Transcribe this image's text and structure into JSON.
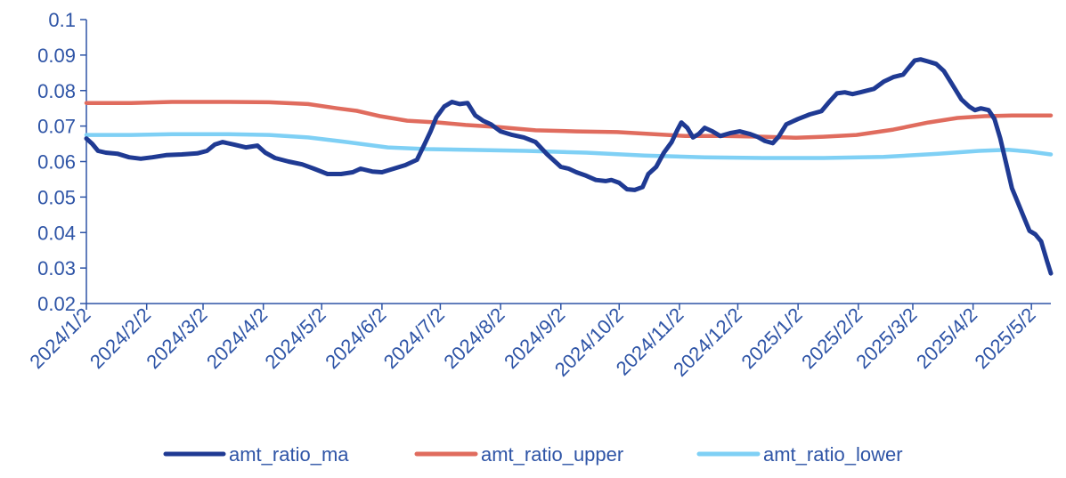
{
  "chart_data": {
    "type": "line",
    "title": "",
    "xlabel": "",
    "ylabel": "",
    "ylim": [
      0.02,
      0.1
    ],
    "y_ticks": [
      "0.02",
      "0.03",
      "0.04",
      "0.05",
      "0.06",
      "0.07",
      "0.08",
      "0.09",
      "0.1"
    ],
    "x_range": [
      "2024-01-02",
      "2025-05-12"
    ],
    "x_ticks": [
      "2024/1/2",
      "2024/2/2",
      "2024/3/2",
      "2024/4/2",
      "2024/5/2",
      "2024/6/2",
      "2024/7/2",
      "2024/8/2",
      "2024/9/2",
      "2024/10/2",
      "2024/11/2",
      "2024/12/2",
      "2025/1/2",
      "2025/2/2",
      "2025/3/2",
      "2025/4/2",
      "2025/5/2"
    ],
    "grid": false,
    "legend": "bottom",
    "series": [
      {
        "name": "amt_ratio_ma",
        "color": "#1F3A93",
        "points": [
          [
            "2024-01-02",
            0.0665
          ],
          [
            "2024-01-05",
            0.065
          ],
          [
            "2024-01-08",
            0.063
          ],
          [
            "2024-01-12",
            0.0625
          ],
          [
            "2024-01-18",
            0.0622
          ],
          [
            "2024-01-24",
            0.0612
          ],
          [
            "2024-01-30",
            0.0608
          ],
          [
            "2024-02-05",
            0.0612
          ],
          [
            "2024-02-12",
            0.0618
          ],
          [
            "2024-02-20",
            0.062
          ],
          [
            "2024-02-28",
            0.0623
          ],
          [
            "2024-03-04",
            0.063
          ],
          [
            "2024-03-08",
            0.0648
          ],
          [
            "2024-03-12",
            0.0655
          ],
          [
            "2024-03-18",
            0.0648
          ],
          [
            "2024-03-24",
            0.064
          ],
          [
            "2024-03-30",
            0.0645
          ],
          [
            "2024-04-03",
            0.0625
          ],
          [
            "2024-04-08",
            0.061
          ],
          [
            "2024-04-15",
            0.06
          ],
          [
            "2024-04-22",
            0.0592
          ],
          [
            "2024-04-28",
            0.058
          ],
          [
            "2024-05-05",
            0.0565
          ],
          [
            "2024-05-12",
            0.0565
          ],
          [
            "2024-05-18",
            0.057
          ],
          [
            "2024-05-22",
            0.058
          ],
          [
            "2024-05-28",
            0.0572
          ],
          [
            "2024-06-02",
            0.057
          ],
          [
            "2024-06-08",
            0.058
          ],
          [
            "2024-06-14",
            0.059
          ],
          [
            "2024-06-20",
            0.0605
          ],
          [
            "2024-06-24",
            0.065
          ],
          [
            "2024-06-27",
            0.0685
          ],
          [
            "2024-06-30",
            0.0725
          ],
          [
            "2024-07-04",
            0.0755
          ],
          [
            "2024-07-08",
            0.0768
          ],
          [
            "2024-07-12",
            0.0762
          ],
          [
            "2024-07-16",
            0.0765
          ],
          [
            "2024-07-20",
            0.073
          ],
          [
            "2024-07-24",
            0.0715
          ],
          [
            "2024-07-28",
            0.0705
          ],
          [
            "2024-08-02",
            0.0685
          ],
          [
            "2024-08-08",
            0.0675
          ],
          [
            "2024-08-14",
            0.0668
          ],
          [
            "2024-08-20",
            0.0655
          ],
          [
            "2024-08-26",
            0.062
          ],
          [
            "2024-09-02",
            0.0585
          ],
          [
            "2024-09-06",
            0.058
          ],
          [
            "2024-09-10",
            0.057
          ],
          [
            "2024-09-15",
            0.056
          ],
          [
            "2024-09-20",
            0.0548
          ],
          [
            "2024-09-25",
            0.0545
          ],
          [
            "2024-09-28",
            0.0548
          ],
          [
            "2024-10-02",
            0.054
          ],
          [
            "2024-10-06",
            0.0522
          ],
          [
            "2024-10-10",
            0.052
          ],
          [
            "2024-10-14",
            0.0528
          ],
          [
            "2024-10-17",
            0.0565
          ],
          [
            "2024-10-21",
            0.0585
          ],
          [
            "2024-10-25",
            0.0625
          ],
          [
            "2024-10-29",
            0.0655
          ],
          [
            "2024-11-01",
            0.069
          ],
          [
            "2024-11-03",
            0.071
          ],
          [
            "2024-11-06",
            0.0695
          ],
          [
            "2024-11-09",
            0.0668
          ],
          [
            "2024-11-12",
            0.0678
          ],
          [
            "2024-11-15",
            0.0695
          ],
          [
            "2024-11-19",
            0.0685
          ],
          [
            "2024-11-23",
            0.0672
          ],
          [
            "2024-11-28",
            0.068
          ],
          [
            "2024-12-03",
            0.0685
          ],
          [
            "2024-12-08",
            0.0678
          ],
          [
            "2024-12-12",
            0.067
          ],
          [
            "2024-12-16",
            0.0658
          ],
          [
            "2024-12-20",
            0.0652
          ],
          [
            "2024-12-23",
            0.067
          ],
          [
            "2024-12-27",
            0.0705
          ],
          [
            "2025-01-02",
            0.072
          ],
          [
            "2025-01-08",
            0.0733
          ],
          [
            "2025-01-14",
            0.0742
          ],
          [
            "2025-01-18",
            0.0768
          ],
          [
            "2025-01-22",
            0.0792
          ],
          [
            "2025-01-26",
            0.0795
          ],
          [
            "2025-01-30",
            0.079
          ],
          [
            "2025-02-03",
            0.0795
          ],
          [
            "2025-02-10",
            0.0805
          ],
          [
            "2025-02-15",
            0.0825
          ],
          [
            "2025-02-20",
            0.0838
          ],
          [
            "2025-02-25",
            0.0845
          ],
          [
            "2025-02-28",
            0.0865
          ],
          [
            "2025-03-03",
            0.0885
          ],
          [
            "2025-03-06",
            0.0888
          ],
          [
            "2025-03-10",
            0.0882
          ],
          [
            "2025-03-14",
            0.0875
          ],
          [
            "2025-03-18",
            0.0855
          ],
          [
            "2025-03-22",
            0.082
          ],
          [
            "2025-03-27",
            0.0775
          ],
          [
            "2025-03-31",
            0.0755
          ],
          [
            "2025-04-03",
            0.0745
          ],
          [
            "2025-04-06",
            0.075
          ],
          [
            "2025-04-10",
            0.0745
          ],
          [
            "2025-04-13",
            0.072
          ],
          [
            "2025-04-16",
            0.0665
          ],
          [
            "2025-04-19",
            0.0595
          ],
          [
            "2025-04-22",
            0.0525
          ],
          [
            "2025-04-25",
            0.0485
          ],
          [
            "2025-04-28",
            0.0445
          ],
          [
            "2025-05-01",
            0.0405
          ],
          [
            "2025-05-04",
            0.0395
          ],
          [
            "2025-05-07",
            0.0375
          ],
          [
            "2025-05-10",
            0.032
          ],
          [
            "2025-05-12",
            0.0285
          ]
        ]
      },
      {
        "name": "amt_ratio_upper",
        "color": "#E06C5E",
        "points": [
          [
            "2024-01-02",
            0.0765
          ],
          [
            "2024-01-25",
            0.0765
          ],
          [
            "2024-02-15",
            0.0768
          ],
          [
            "2024-03-15",
            0.0768
          ],
          [
            "2024-04-05",
            0.0767
          ],
          [
            "2024-04-25",
            0.0762
          ],
          [
            "2024-05-10",
            0.075
          ],
          [
            "2024-05-20",
            0.0743
          ],
          [
            "2024-06-01",
            0.0728
          ],
          [
            "2024-06-15",
            0.0715
          ],
          [
            "2024-07-01",
            0.071
          ],
          [
            "2024-07-15",
            0.0703
          ],
          [
            "2024-08-01",
            0.0697
          ],
          [
            "2024-08-20",
            0.0688
          ],
          [
            "2024-09-10",
            0.0685
          ],
          [
            "2024-10-01",
            0.0683
          ],
          [
            "2024-10-20",
            0.0677
          ],
          [
            "2024-11-05",
            0.0672
          ],
          [
            "2024-11-25",
            0.0672
          ],
          [
            "2024-12-15",
            0.067
          ],
          [
            "2025-01-01",
            0.0667
          ],
          [
            "2025-01-15",
            0.067
          ],
          [
            "2025-02-01",
            0.0675
          ],
          [
            "2025-02-20",
            0.069
          ],
          [
            "2025-03-10",
            0.071
          ],
          [
            "2025-03-25",
            0.0723
          ],
          [
            "2025-04-08",
            0.0728
          ],
          [
            "2025-04-22",
            0.073
          ],
          [
            "2025-05-12",
            0.073
          ]
        ]
      },
      {
        "name": "amt_ratio_lower",
        "color": "#7FD0F5",
        "points": [
          [
            "2024-01-02",
            0.0675
          ],
          [
            "2024-01-25",
            0.0675
          ],
          [
            "2024-02-15",
            0.0677
          ],
          [
            "2024-03-15",
            0.0677
          ],
          [
            "2024-04-05",
            0.0675
          ],
          [
            "2024-04-25",
            0.0668
          ],
          [
            "2024-05-15",
            0.0655
          ],
          [
            "2024-06-05",
            0.064
          ],
          [
            "2024-06-25",
            0.0635
          ],
          [
            "2024-07-15",
            0.0633
          ],
          [
            "2024-08-15",
            0.063
          ],
          [
            "2024-09-15",
            0.0625
          ],
          [
            "2024-10-15",
            0.0617
          ],
          [
            "2024-11-15",
            0.0612
          ],
          [
            "2024-12-15",
            0.061
          ],
          [
            "2025-01-15",
            0.061
          ],
          [
            "2025-02-15",
            0.0613
          ],
          [
            "2025-03-15",
            0.0622
          ],
          [
            "2025-04-05",
            0.063
          ],
          [
            "2025-04-20",
            0.0633
          ],
          [
            "2025-05-01",
            0.0628
          ],
          [
            "2025-05-12",
            0.062
          ]
        ]
      }
    ]
  }
}
